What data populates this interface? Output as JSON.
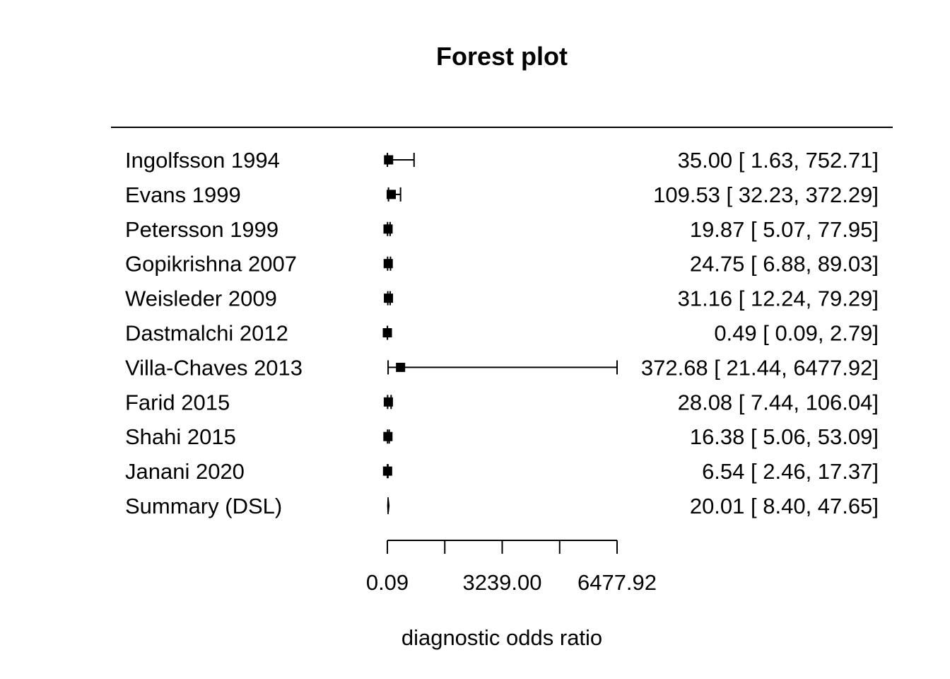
{
  "chart_data": {
    "type": "forest",
    "title": "Forest plot",
    "xlabel": "diagnostic odds ratio",
    "xlim": [
      0.09,
      6477.92
    ],
    "xticks": [
      0.09,
      1619.8,
      3239.0,
      4858.7,
      6477.92
    ],
    "xtick_labels": [
      "0.09",
      "",
      "3239.00",
      "",
      "6477.92"
    ],
    "studies": [
      {
        "label": "Ingolfsson 1994",
        "estimate": 35.0,
        "lower": 1.63,
        "upper": 752.71,
        "ci_text": "35.00 [   1.63,  752.71]"
      },
      {
        "label": "Evans 1999",
        "estimate": 109.53,
        "lower": 32.23,
        "upper": 372.29,
        "ci_text": "109.53 [  32.23,  372.29]"
      },
      {
        "label": "Petersson 1999",
        "estimate": 19.87,
        "lower": 5.07,
        "upper": 77.95,
        "ci_text": "19.87 [   5.07,   77.95]"
      },
      {
        "label": "Gopikrishna 2007",
        "estimate": 24.75,
        "lower": 6.88,
        "upper": 89.03,
        "ci_text": "24.75 [   6.88,   89.03]"
      },
      {
        "label": "Weisleder 2009",
        "estimate": 31.16,
        "lower": 12.24,
        "upper": 79.29,
        "ci_text": "31.16 [  12.24,   79.29]"
      },
      {
        "label": "Dastmalchi 2012",
        "estimate": 0.49,
        "lower": 0.09,
        "upper": 2.79,
        "ci_text": "0.49 [   0.09,    2.79]"
      },
      {
        "label": "Villa-Chaves 2013",
        "estimate": 372.68,
        "lower": 21.44,
        "upper": 6477.92,
        "ci_text": "372.68 [  21.44, 6477.92]"
      },
      {
        "label": "Farid 2015",
        "estimate": 28.08,
        "lower": 7.44,
        "upper": 106.04,
        "ci_text": "28.08 [   7.44,  106.04]"
      },
      {
        "label": "Shahi 2015",
        "estimate": 16.38,
        "lower": 5.06,
        "upper": 53.09,
        "ci_text": "16.38 [   5.06,   53.09]"
      },
      {
        "label": "Janani 2020",
        "estimate": 6.54,
        "lower": 2.46,
        "upper": 17.37,
        "ci_text": "6.54 [   2.46,   17.37]"
      }
    ],
    "summary": {
      "label": "Summary (DSL)",
      "estimate": 20.01,
      "lower": 8.4,
      "upper": 47.65,
      "ci_text": "20.01 [   8.40,   47.65]"
    }
  }
}
